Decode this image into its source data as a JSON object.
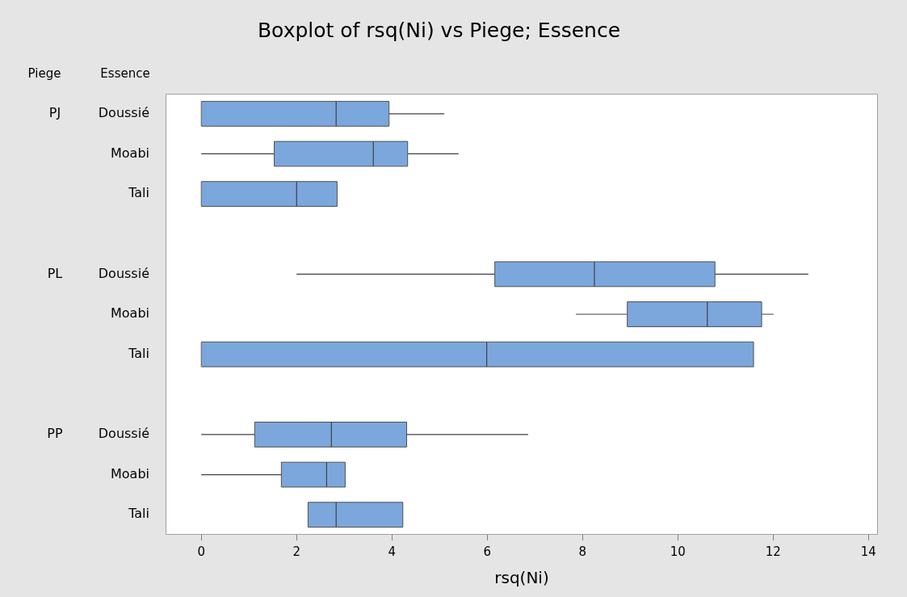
{
  "chart_data": {
    "type": "box",
    "orientation": "horizontal",
    "title": "Boxplot of rsq(Ni) vs Piege; Essence",
    "xlabel": "rsq(Ni)",
    "annotations": [
      "Piege",
      "Essence",
      "PJ",
      "PL",
      "PP"
    ],
    "categories": [
      "Doussié",
      "Moabi",
      "Tali",
      null,
      "Doussié",
      "Moabi",
      "Tali",
      null,
      "Doussié",
      "Moabi",
      "Tali"
    ],
    "color": "#7ba7dc",
    "xlim": [
      -0.75,
      14.2
    ],
    "xticks": [
      0,
      2,
      4,
      6,
      8,
      10,
      12,
      14
    ],
    "boxes": [
      {
        "low": 0,
        "q1": 0,
        "median": 2.83,
        "q3": 3.94,
        "high": 5.1
      },
      {
        "low": 0,
        "q1": 1.53,
        "median": 3.61,
        "q3": 4.33,
        "high": 5.4
      },
      {
        "low": 0,
        "q1": 0,
        "median": 2.0,
        "q3": 2.85,
        "high": 2.85
      },
      null,
      {
        "low": 2.0,
        "q1": 6.16,
        "median": 8.25,
        "q3": 10.78,
        "high": 12.74
      },
      {
        "low": 7.86,
        "q1": 8.94,
        "median": 10.62,
        "q3": 11.76,
        "high": 12.01
      },
      {
        "low": 0,
        "q1": 0,
        "median": 5.99,
        "q3": 11.59,
        "high": 11.59
      },
      null,
      {
        "low": 0,
        "q1": 1.12,
        "median": 2.73,
        "q3": 4.31,
        "high": 6.86
      },
      {
        "low": 0,
        "q1": 1.68,
        "median": 2.63,
        "q3": 3.02,
        "high": 3.02
      },
      {
        "low": 2.24,
        "q1": 2.24,
        "median": 2.83,
        "q3": 4.23,
        "high": 4.23
      }
    ]
  }
}
